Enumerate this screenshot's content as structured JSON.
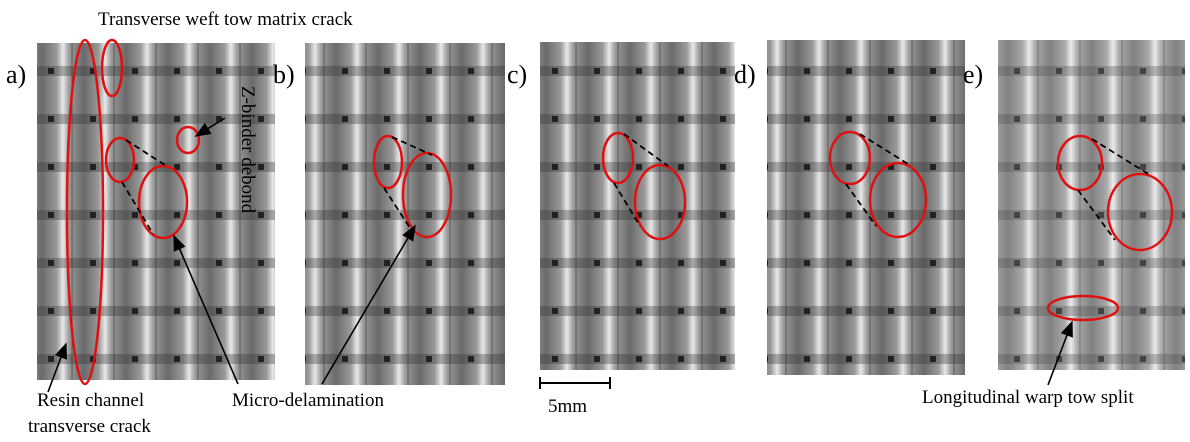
{
  "panels": [
    {
      "label": "a)"
    },
    {
      "label": "b)"
    },
    {
      "label": "c)"
    },
    {
      "label": "d)"
    },
    {
      "label": "e)"
    }
  ],
  "annotations": {
    "weft_crack": "Transverse weft tow matrix crack",
    "z_binder": "Z-binder debond",
    "resin_line1": "Resin channel",
    "resin_line2": "transverse crack",
    "micro_delamination": "Micro-delamination",
    "warp_split": "Longitudinal warp tow split"
  },
  "scale_bar": "5mm"
}
